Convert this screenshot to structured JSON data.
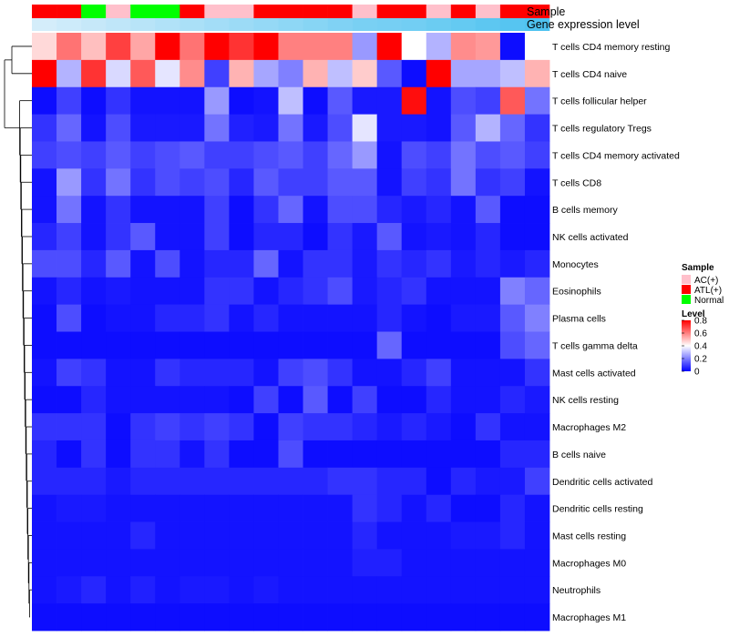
{
  "chart_data": {
    "type": "heatmap",
    "annotation_labels": {
      "sample": "Sample",
      "gene_expression": "Gene expression level"
    },
    "rows": [
      "T cells CD4 memory resting",
      "T cells CD4 naive",
      "T cells follicular helper",
      "T cells regulatory  Tregs",
      "T cells CD4 memory activated",
      "T cells CD8",
      "B cells memory",
      "NK cells activated",
      "Monocytes",
      "Eosinophils",
      "Plasma cells",
      "T cells gamma delta",
      "Mast cells activated",
      "NK cells resting",
      "Macrophages M2",
      "B cells naive",
      "Dendritic cells activated",
      "Dendritic cells resting",
      "Mast cells resting",
      "Macrophages M0",
      "Neutrophils",
      "Macrophages M1"
    ],
    "sample_groups": [
      "ATL(+)",
      "ATL(+)",
      "Normal",
      "AC(+)",
      "Normal",
      "Normal",
      "ATL(+)",
      "AC(+)",
      "AC(+)",
      "ATL(+)",
      "ATL(+)",
      "ATL(+)",
      "ATL(+)",
      "AC(+)",
      "ATL(+)",
      "ATL(+)",
      "AC(+)",
      "ATL(+)",
      "AC(+)",
      "ATL(+)",
      "ATL(+)"
    ],
    "gene_expression": [
      0.05,
      0.1,
      0.15,
      0.2,
      0.25,
      0.3,
      0.35,
      0.4,
      0.45,
      0.5,
      0.55,
      0.6,
      0.65,
      0.7,
      0.72,
      0.75,
      0.8,
      0.85,
      0.9,
      0.95,
      1.0
    ],
    "values": [
      [
        0.46,
        0.62,
        0.5,
        0.7,
        0.54,
        0.8,
        0.62,
        0.8,
        0.72,
        0.82,
        0.6,
        0.6,
        0.6,
        0.24,
        0.82,
        0.4,
        0.28,
        0.58,
        0.56,
        0.02,
        0.4
      ],
      [
        0.8,
        0.28,
        0.72,
        0.34,
        0.66,
        0.36,
        0.58,
        0.1,
        0.52,
        0.26,
        0.2,
        0.52,
        0.3,
        0.48,
        0.14,
        0.02,
        0.82,
        0.26,
        0.26,
        0.3,
        0.52
      ],
      [
        0.02,
        0.1,
        0.02,
        0.08,
        0.03,
        0.03,
        0.03,
        0.24,
        0.02,
        0.03,
        0.3,
        0.02,
        0.14,
        0.04,
        0.04,
        0.78,
        0.03,
        0.12,
        0.1,
        0.66,
        0.18
      ],
      [
        0.08,
        0.16,
        0.03,
        0.12,
        0.04,
        0.04,
        0.04,
        0.18,
        0.05,
        0.04,
        0.18,
        0.04,
        0.12,
        0.36,
        0.04,
        0.04,
        0.03,
        0.14,
        0.28,
        0.16,
        0.08
      ],
      [
        0.1,
        0.12,
        0.1,
        0.14,
        0.1,
        0.12,
        0.14,
        0.1,
        0.1,
        0.12,
        0.14,
        0.1,
        0.16,
        0.24,
        0.03,
        0.12,
        0.1,
        0.18,
        0.12,
        0.14,
        0.1
      ],
      [
        0.03,
        0.24,
        0.08,
        0.18,
        0.08,
        0.12,
        0.1,
        0.12,
        0.06,
        0.14,
        0.1,
        0.1,
        0.14,
        0.14,
        0.03,
        0.1,
        0.08,
        0.18,
        0.08,
        0.1,
        0.03
      ],
      [
        0.03,
        0.18,
        0.03,
        0.08,
        0.03,
        0.03,
        0.03,
        0.1,
        0.02,
        0.08,
        0.16,
        0.03,
        0.12,
        0.12,
        0.06,
        0.04,
        0.06,
        0.03,
        0.14,
        0.02,
        0.02
      ],
      [
        0.06,
        0.1,
        0.03,
        0.08,
        0.14,
        0.03,
        0.03,
        0.1,
        0.02,
        0.06,
        0.06,
        0.02,
        0.08,
        0.04,
        0.14,
        0.03,
        0.04,
        0.03,
        0.06,
        0.02,
        0.02
      ],
      [
        0.12,
        0.12,
        0.06,
        0.14,
        0.03,
        0.12,
        0.03,
        0.06,
        0.06,
        0.16,
        0.03,
        0.08,
        0.08,
        0.04,
        0.08,
        0.06,
        0.08,
        0.04,
        0.06,
        0.04,
        0.06
      ],
      [
        0.03,
        0.06,
        0.03,
        0.04,
        0.03,
        0.03,
        0.03,
        0.08,
        0.08,
        0.03,
        0.06,
        0.08,
        0.12,
        0.04,
        0.06,
        0.08,
        0.03,
        0.03,
        0.03,
        0.2,
        0.16
      ],
      [
        0.02,
        0.12,
        0.02,
        0.03,
        0.03,
        0.06,
        0.06,
        0.08,
        0.03,
        0.06,
        0.03,
        0.03,
        0.03,
        0.03,
        0.06,
        0.03,
        0.02,
        0.04,
        0.04,
        0.14,
        0.2
      ],
      [
        0.02,
        0.02,
        0.02,
        0.02,
        0.02,
        0.02,
        0.02,
        0.02,
        0.02,
        0.02,
        0.02,
        0.02,
        0.02,
        0.02,
        0.16,
        0.02,
        0.02,
        0.02,
        0.02,
        0.12,
        0.16
      ],
      [
        0.03,
        0.1,
        0.08,
        0.03,
        0.03,
        0.08,
        0.06,
        0.06,
        0.06,
        0.03,
        0.1,
        0.12,
        0.08,
        0.03,
        0.03,
        0.06,
        0.1,
        0.03,
        0.03,
        0.03,
        0.08
      ],
      [
        0.02,
        0.02,
        0.06,
        0.03,
        0.03,
        0.03,
        0.03,
        0.03,
        0.02,
        0.1,
        0.02,
        0.14,
        0.02,
        0.1,
        0.02,
        0.02,
        0.06,
        0.03,
        0.03,
        0.06,
        0.04
      ],
      [
        0.08,
        0.08,
        0.08,
        0.02,
        0.08,
        0.1,
        0.08,
        0.1,
        0.08,
        0.02,
        0.1,
        0.08,
        0.08,
        0.06,
        0.04,
        0.06,
        0.04,
        0.02,
        0.08,
        0.03,
        0.03
      ],
      [
        0.06,
        0.02,
        0.08,
        0.02,
        0.08,
        0.08,
        0.03,
        0.08,
        0.02,
        0.02,
        0.12,
        0.02,
        0.02,
        0.02,
        0.02,
        0.02,
        0.02,
        0.02,
        0.02,
        0.06,
        0.06
      ],
      [
        0.06,
        0.06,
        0.06,
        0.04,
        0.06,
        0.06,
        0.06,
        0.06,
        0.06,
        0.06,
        0.06,
        0.06,
        0.08,
        0.08,
        0.06,
        0.06,
        0.02,
        0.06,
        0.04,
        0.04,
        0.1
      ],
      [
        0.03,
        0.04,
        0.04,
        0.03,
        0.03,
        0.03,
        0.03,
        0.03,
        0.03,
        0.03,
        0.03,
        0.03,
        0.03,
        0.08,
        0.06,
        0.03,
        0.06,
        0.02,
        0.02,
        0.06,
        0.03
      ],
      [
        0.03,
        0.03,
        0.03,
        0.03,
        0.06,
        0.03,
        0.03,
        0.03,
        0.03,
        0.03,
        0.03,
        0.03,
        0.03,
        0.06,
        0.03,
        0.03,
        0.03,
        0.04,
        0.04,
        0.06,
        0.03
      ],
      [
        0.03,
        0.03,
        0.03,
        0.03,
        0.03,
        0.03,
        0.03,
        0.03,
        0.03,
        0.03,
        0.03,
        0.03,
        0.03,
        0.05,
        0.05,
        0.03,
        0.03,
        0.03,
        0.03,
        0.03,
        0.03
      ],
      [
        0.03,
        0.04,
        0.06,
        0.03,
        0.05,
        0.03,
        0.04,
        0.04,
        0.03,
        0.04,
        0.03,
        0.03,
        0.03,
        0.03,
        0.03,
        0.03,
        0.03,
        0.03,
        0.03,
        0.03,
        0.03
      ],
      [
        0.02,
        0.02,
        0.02,
        0.02,
        0.02,
        0.02,
        0.02,
        0.02,
        0.02,
        0.02,
        0.02,
        0.02,
        0.02,
        0.02,
        0.02,
        0.02,
        0.02,
        0.02,
        0.02,
        0.02,
        0.02
      ]
    ],
    "legend": {
      "sample_title": "Sample",
      "sample_entries": [
        {
          "label": "AC(+)",
          "color": "#ffc0cb"
        },
        {
          "label": "ATL(+)",
          "color": "#ff0000"
        },
        {
          "label": "Normal",
          "color": "#00ff00"
        }
      ],
      "level_title": "Level",
      "level_ticks": [
        "0.8",
        "0.6",
        "0.4",
        "0.2",
        "0"
      ],
      "level_range": [
        0,
        0.8
      ],
      "placement": "right"
    },
    "colors": {
      "low": "#0000ff",
      "mid": "#ffffff",
      "high": "#ff0000",
      "expr_low": "#dbeffb",
      "expr_high": "#4fc3f0"
    }
  }
}
